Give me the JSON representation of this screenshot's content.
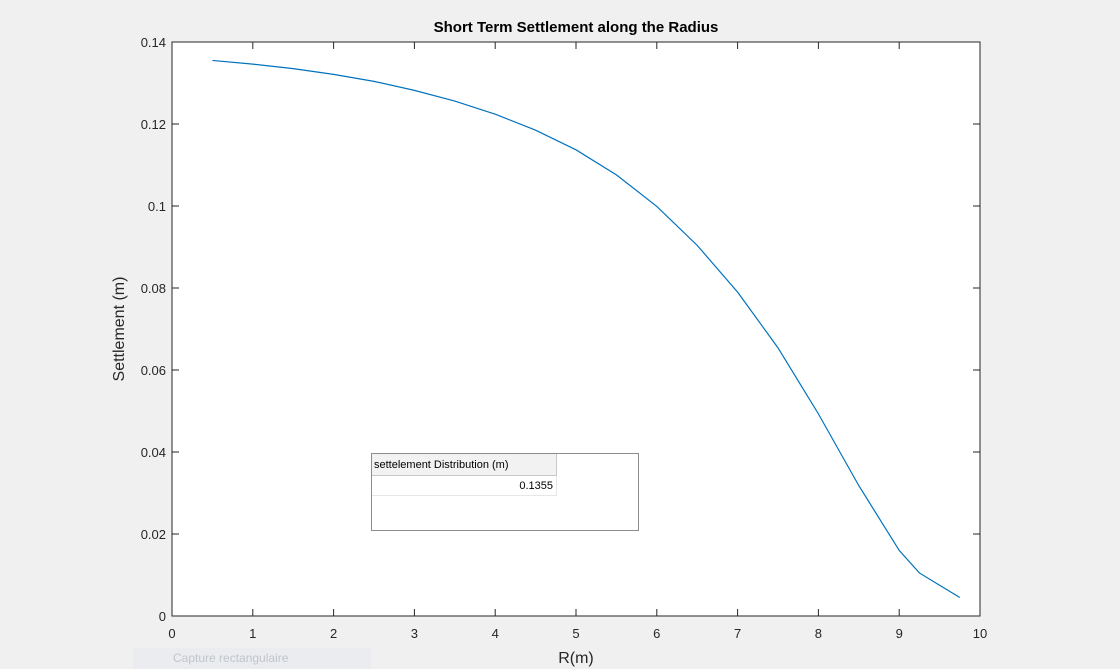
{
  "chart_data": {
    "type": "line",
    "title": "Short Term Settlement along the Radius",
    "xlabel": "R(m)",
    "ylabel": "Settlement (m)",
    "xlim": [
      0,
      10
    ],
    "ylim": [
      0,
      0.14
    ],
    "xticks": [
      0,
      1,
      2,
      3,
      4,
      5,
      6,
      7,
      8,
      9,
      10
    ],
    "yticks": [
      0,
      0.02,
      0.04,
      0.06,
      0.08,
      0.1,
      0.12,
      0.14
    ],
    "xtick_labels": [
      "0",
      "1",
      "2",
      "3",
      "4",
      "5",
      "6",
      "7",
      "8",
      "9",
      "10"
    ],
    "ytick_labels": [
      "0",
      "0.02",
      "0.04",
      "0.06",
      "0.08",
      "0.1",
      "0.12",
      "0.14"
    ],
    "grid": false,
    "line_color": "#0072bd",
    "series": [
      {
        "x": [
          0.5,
          1.0,
          1.5,
          2.0,
          2.5,
          3.0,
          3.5,
          4.0,
          4.5,
          5.0,
          5.5,
          6.0,
          6.5,
          7.0,
          7.5,
          8.0,
          8.5,
          9.0,
          9.25,
          9.5,
          9.75
        ],
        "y": [
          0.1355,
          0.1346,
          0.1335,
          0.1321,
          0.1304,
          0.1282,
          0.1256,
          0.1224,
          0.1185,
          0.1137,
          0.1076,
          0.0999,
          0.0904,
          0.079,
          0.0654,
          0.0493,
          0.0318,
          0.016,
          0.0105,
          0.0075,
          0.0045
        ]
      }
    ]
  },
  "table": {
    "column_header": "settelement Distribution (m)",
    "value": "0.1355"
  },
  "overlay": {
    "label": "Capture rectangulaire"
  }
}
